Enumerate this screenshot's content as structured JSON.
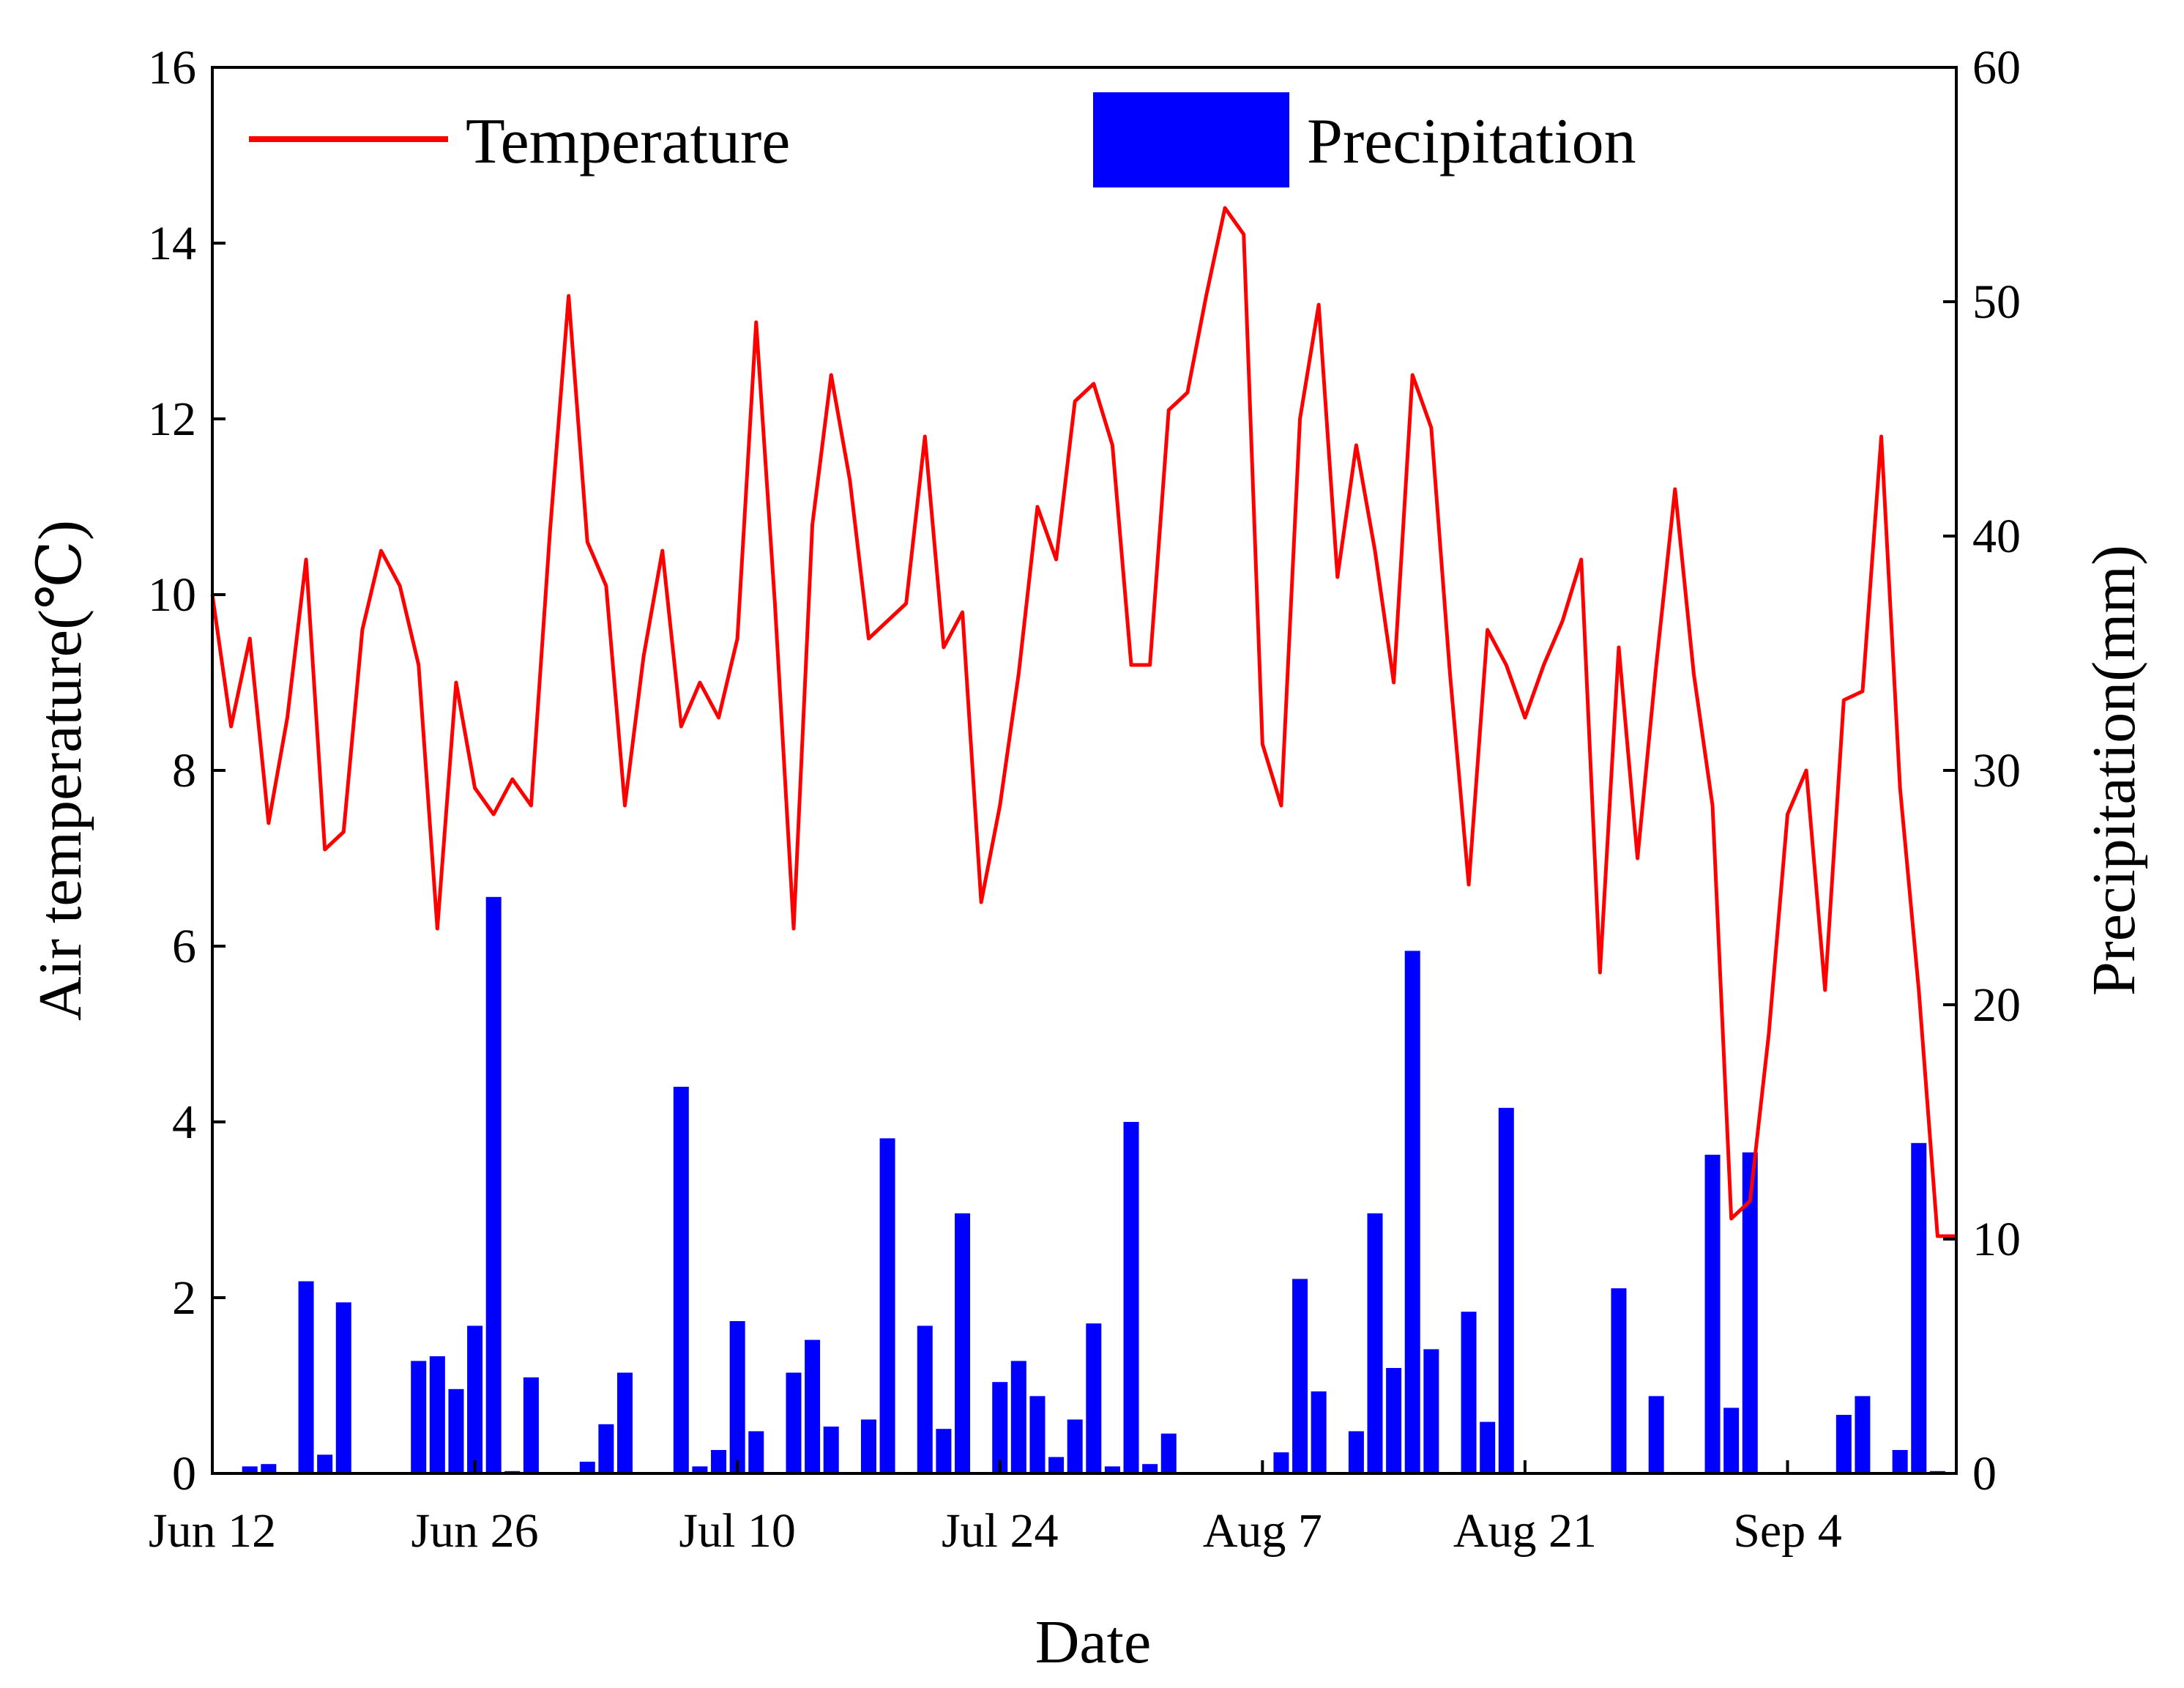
{
  "chart_data": {
    "type": "bar+line",
    "xlabel": "Date",
    "ylabel_left": "Air temperature(℃)",
    "ylabel_right": "Precipitation(mm)",
    "x_ticks": [
      "Jun 12",
      "Jun 26",
      "Jul 10",
      "Jul 24",
      "Aug 7",
      "Aug 21",
      "Sep 4"
    ],
    "x_tick_day_index": [
      0,
      14,
      28,
      42,
      56,
      70,
      84
    ],
    "ylim_left": [
      0,
      16
    ],
    "y_ticks_left": [
      "0",
      "2",
      "4",
      "6",
      "8",
      "10",
      "12",
      "14",
      "16"
    ],
    "ylim_right": [
      0,
      60
    ],
    "y_ticks_right": [
      "0",
      "10",
      "20",
      "30",
      "40",
      "50",
      "60"
    ],
    "grid": false,
    "legend": {
      "placement": "top",
      "items": [
        {
          "label": "Temperature",
          "kind": "line",
          "color": "#ff0000"
        },
        {
          "label": "Precipitation",
          "kind": "bar",
          "color": "#0000ff"
        }
      ]
    },
    "series": [
      {
        "name": "Temperature",
        "axis": "left",
        "color": "#ff0000",
        "values": [
          10.0,
          8.5,
          9.5,
          7.4,
          8.6,
          10.4,
          7.1,
          7.3,
          9.6,
          10.5,
          10.1,
          9.2,
          6.2,
          9.0,
          7.8,
          7.5,
          7.9,
          7.6,
          10.7,
          13.4,
          10.6,
          10.1,
          7.6,
          9.3,
          10.5,
          8.5,
          9.0,
          8.6,
          9.5,
          13.1,
          9.9,
          6.2,
          10.8,
          12.5,
          11.3,
          9.5,
          9.7,
          9.9,
          11.8,
          9.4,
          9.8,
          6.5,
          7.6,
          9.1,
          11.0,
          10.4,
          12.2,
          12.4,
          11.7,
          9.2,
          9.2,
          12.1,
          12.3,
          13.4,
          14.4,
          14.1,
          8.3,
          7.6,
          12.0,
          13.3,
          10.2,
          11.7,
          10.5,
          9.0,
          12.5,
          11.9,
          9.1,
          6.7,
          9.6,
          9.2,
          8.6,
          9.2,
          9.7,
          10.4,
          5.7,
          9.4,
          7.0,
          9.2,
          11.2,
          9.1,
          7.6,
          2.9,
          3.1,
          5.0,
          7.5,
          8.0,
          5.5,
          8.8,
          8.9,
          11.8,
          7.8,
          5.5,
          2.7,
          2.7
        ]
      },
      {
        "name": "Precipitation",
        "axis": "right",
        "color": "#0000ff",
        "values": [
          0,
          0,
          0.3,
          0.4,
          0,
          8.2,
          0.8,
          7.3,
          0,
          0,
          0,
          4.8,
          5.0,
          3.6,
          6.3,
          24.6,
          0.1,
          4.1,
          0,
          0,
          0.5,
          2.1,
          4.3,
          0,
          0,
          16.5,
          0.3,
          1.0,
          6.5,
          1.8,
          0,
          4.3,
          5.7,
          2.0,
          0,
          2.3,
          14.3,
          0,
          6.3,
          1.9,
          11.1,
          0,
          3.9,
          4.8,
          3.3,
          0.7,
          2.3,
          6.4,
          0.3,
          15.0,
          0.4,
          1.7,
          0,
          0,
          0,
          0,
          0,
          0.9,
          8.3,
          3.5,
          0,
          1.8,
          11.1,
          4.5,
          22.3,
          5.3,
          0,
          6.9,
          2.2,
          15.6,
          0,
          0,
          0,
          0,
          0,
          7.9,
          0,
          3.3,
          0,
          0,
          13.6,
          2.8,
          13.7,
          0,
          0,
          0,
          0,
          2.5,
          3.3,
          0,
          1.0,
          14.1,
          0.1,
          0
        ]
      }
    ]
  }
}
